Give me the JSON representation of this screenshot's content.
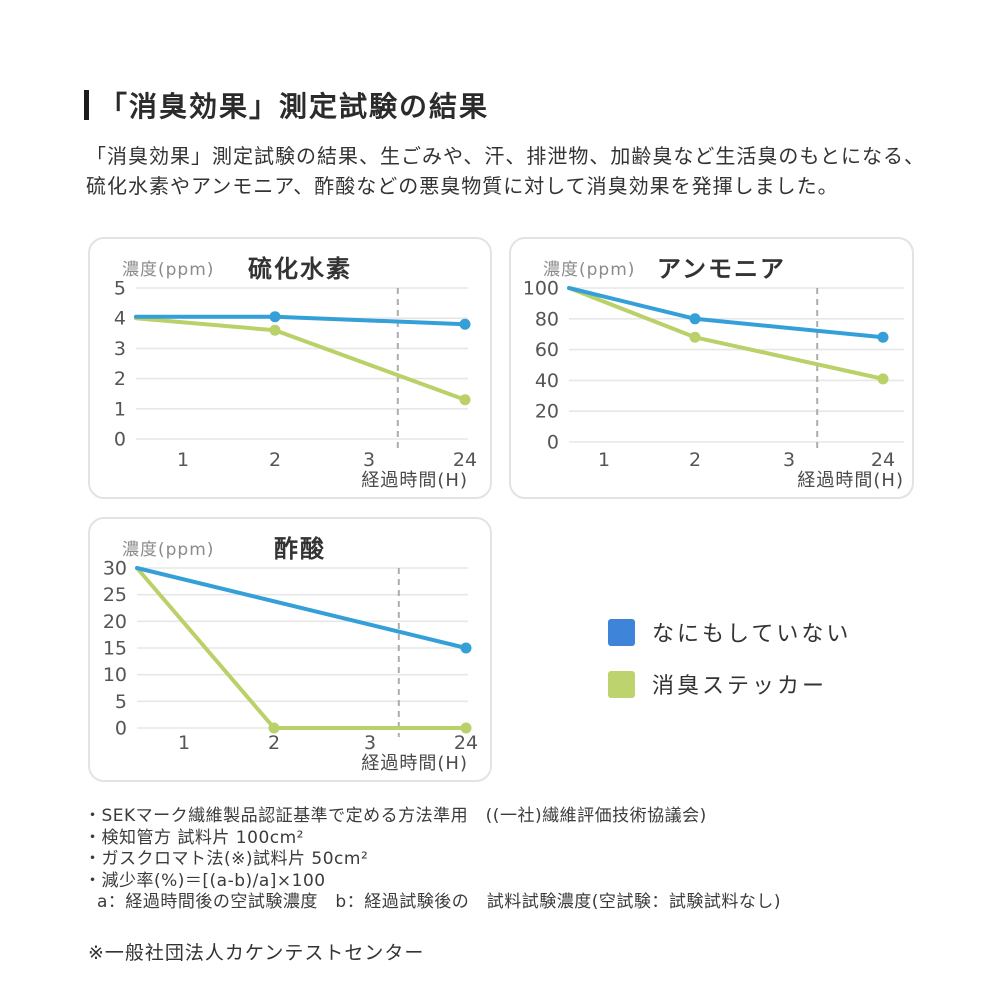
{
  "page": {
    "title": "「消臭効果」測定試験の結果",
    "intro": [
      "「消臭効果」測定試験の結果、生ごみや、汗、排泄物、加齢臭など生活臭のもとになる、",
      "硫化水素やアンモニア、酢酸などの悪臭物質に対して消臭効果を発揮しました。"
    ]
  },
  "colors": {
    "series_blue": "#35a0d8",
    "series_green": "#bad169",
    "legend_blue": "#3e84d9",
    "legend_green": "#bdd36e",
    "grid": "#e7e7e7",
    "axis_break": "#adadad",
    "panel_border": "#e3e3e3",
    "title_bar": "#1c1c1c"
  },
  "legend": [
    {
      "label": "なにもしていない",
      "color": "legend_blue"
    },
    {
      "label": "消臭ステッカー",
      "color": "legend_green"
    }
  ],
  "chart_data": [
    {
      "type": "line",
      "title": "硫化水素",
      "ylabel": "濃度(ppm)",
      "xlabel": "経過時間(H)",
      "x_ticks": [
        "1",
        "2",
        "3",
        "24"
      ],
      "y_ticks": [
        5,
        4,
        3,
        2,
        1,
        0
      ],
      "ylim": [
        0,
        5
      ],
      "grid": "horizontal",
      "axis_break_between": [
        "3",
        "24"
      ],
      "series": [
        {
          "name": "なにもしていない",
          "color": "series_blue",
          "points": [
            {
              "x": "start",
              "y": 4.05,
              "marker": false
            },
            {
              "x": "2",
              "y": 4.05,
              "marker": true
            },
            {
              "x": "24",
              "y": 3.8,
              "marker": true
            }
          ]
        },
        {
          "name": "消臭ステッカー",
          "color": "series_green",
          "points": [
            {
              "x": "start",
              "y": 4.0,
              "marker": false
            },
            {
              "x": "2",
              "y": 3.6,
              "marker": true
            },
            {
              "x": "24",
              "y": 1.3,
              "marker": true
            }
          ]
        }
      ]
    },
    {
      "type": "line",
      "title": "アンモニア",
      "ylabel": "濃度(ppm)",
      "xlabel": "経過時間(H)",
      "x_ticks": [
        "1",
        "2",
        "3",
        "24"
      ],
      "y_ticks": [
        100,
        80,
        60,
        40,
        20,
        0
      ],
      "ylim": [
        0,
        100
      ],
      "grid": "horizontal",
      "axis_break_between": [
        "3",
        "24"
      ],
      "series": [
        {
          "name": "なにもしていない",
          "color": "series_blue",
          "points": [
            {
              "x": "start",
              "y": 100,
              "marker": false
            },
            {
              "x": "2",
              "y": 80,
              "marker": true
            },
            {
              "x": "24",
              "y": 68,
              "marker": true
            }
          ]
        },
        {
          "name": "消臭ステッカー",
          "color": "series_green",
          "points": [
            {
              "x": "start",
              "y": 100,
              "marker": false
            },
            {
              "x": "2",
              "y": 68,
              "marker": true
            },
            {
              "x": "24",
              "y": 41,
              "marker": true
            }
          ]
        }
      ]
    },
    {
      "type": "line",
      "title": "酢酸",
      "ylabel": "濃度(ppm)",
      "xlabel": "経過時間(H)",
      "x_ticks": [
        "1",
        "2",
        "3",
        "24"
      ],
      "y_ticks": [
        30,
        25,
        20,
        15,
        10,
        5,
        0
      ],
      "ylim": [
        0,
        30
      ],
      "grid": "horizontal",
      "axis_break_between": [
        "3",
        "24"
      ],
      "series": [
        {
          "name": "なにもしていない",
          "color": "series_blue",
          "points": [
            {
              "x": "start",
              "y": 30,
              "marker": false
            },
            {
              "x": "24",
              "y": 15,
              "marker": true
            }
          ]
        },
        {
          "name": "消臭ステッカー",
          "color": "series_green",
          "points": [
            {
              "x": "start",
              "y": 30,
              "marker": false
            },
            {
              "x": "2",
              "y": 0,
              "marker": true
            },
            {
              "x": "24",
              "y": 0,
              "marker": true
            }
          ]
        }
      ]
    }
  ],
  "footnotes": [
    {
      "text": "・SEKマーク繊維製品認証基準で定める方法準用　((一社)繊維評価技術協議会)",
      "indent": false
    },
    {
      "text": "・検知管方 試料片 100cm²",
      "indent": false
    },
    {
      "text": "・ガスクロマト法(※)試料片 50cm²",
      "indent": false
    },
    {
      "text": "・減少率(%)＝[(a-b)/a]×100",
      "indent": false
    },
    {
      "text": "a：経過時間後の空試験濃度　b：経過試験後の　試料試験濃度(空試験：試験試料なし)",
      "indent": true
    }
  ],
  "note": "※一般社団法人カケンテストセンター"
}
